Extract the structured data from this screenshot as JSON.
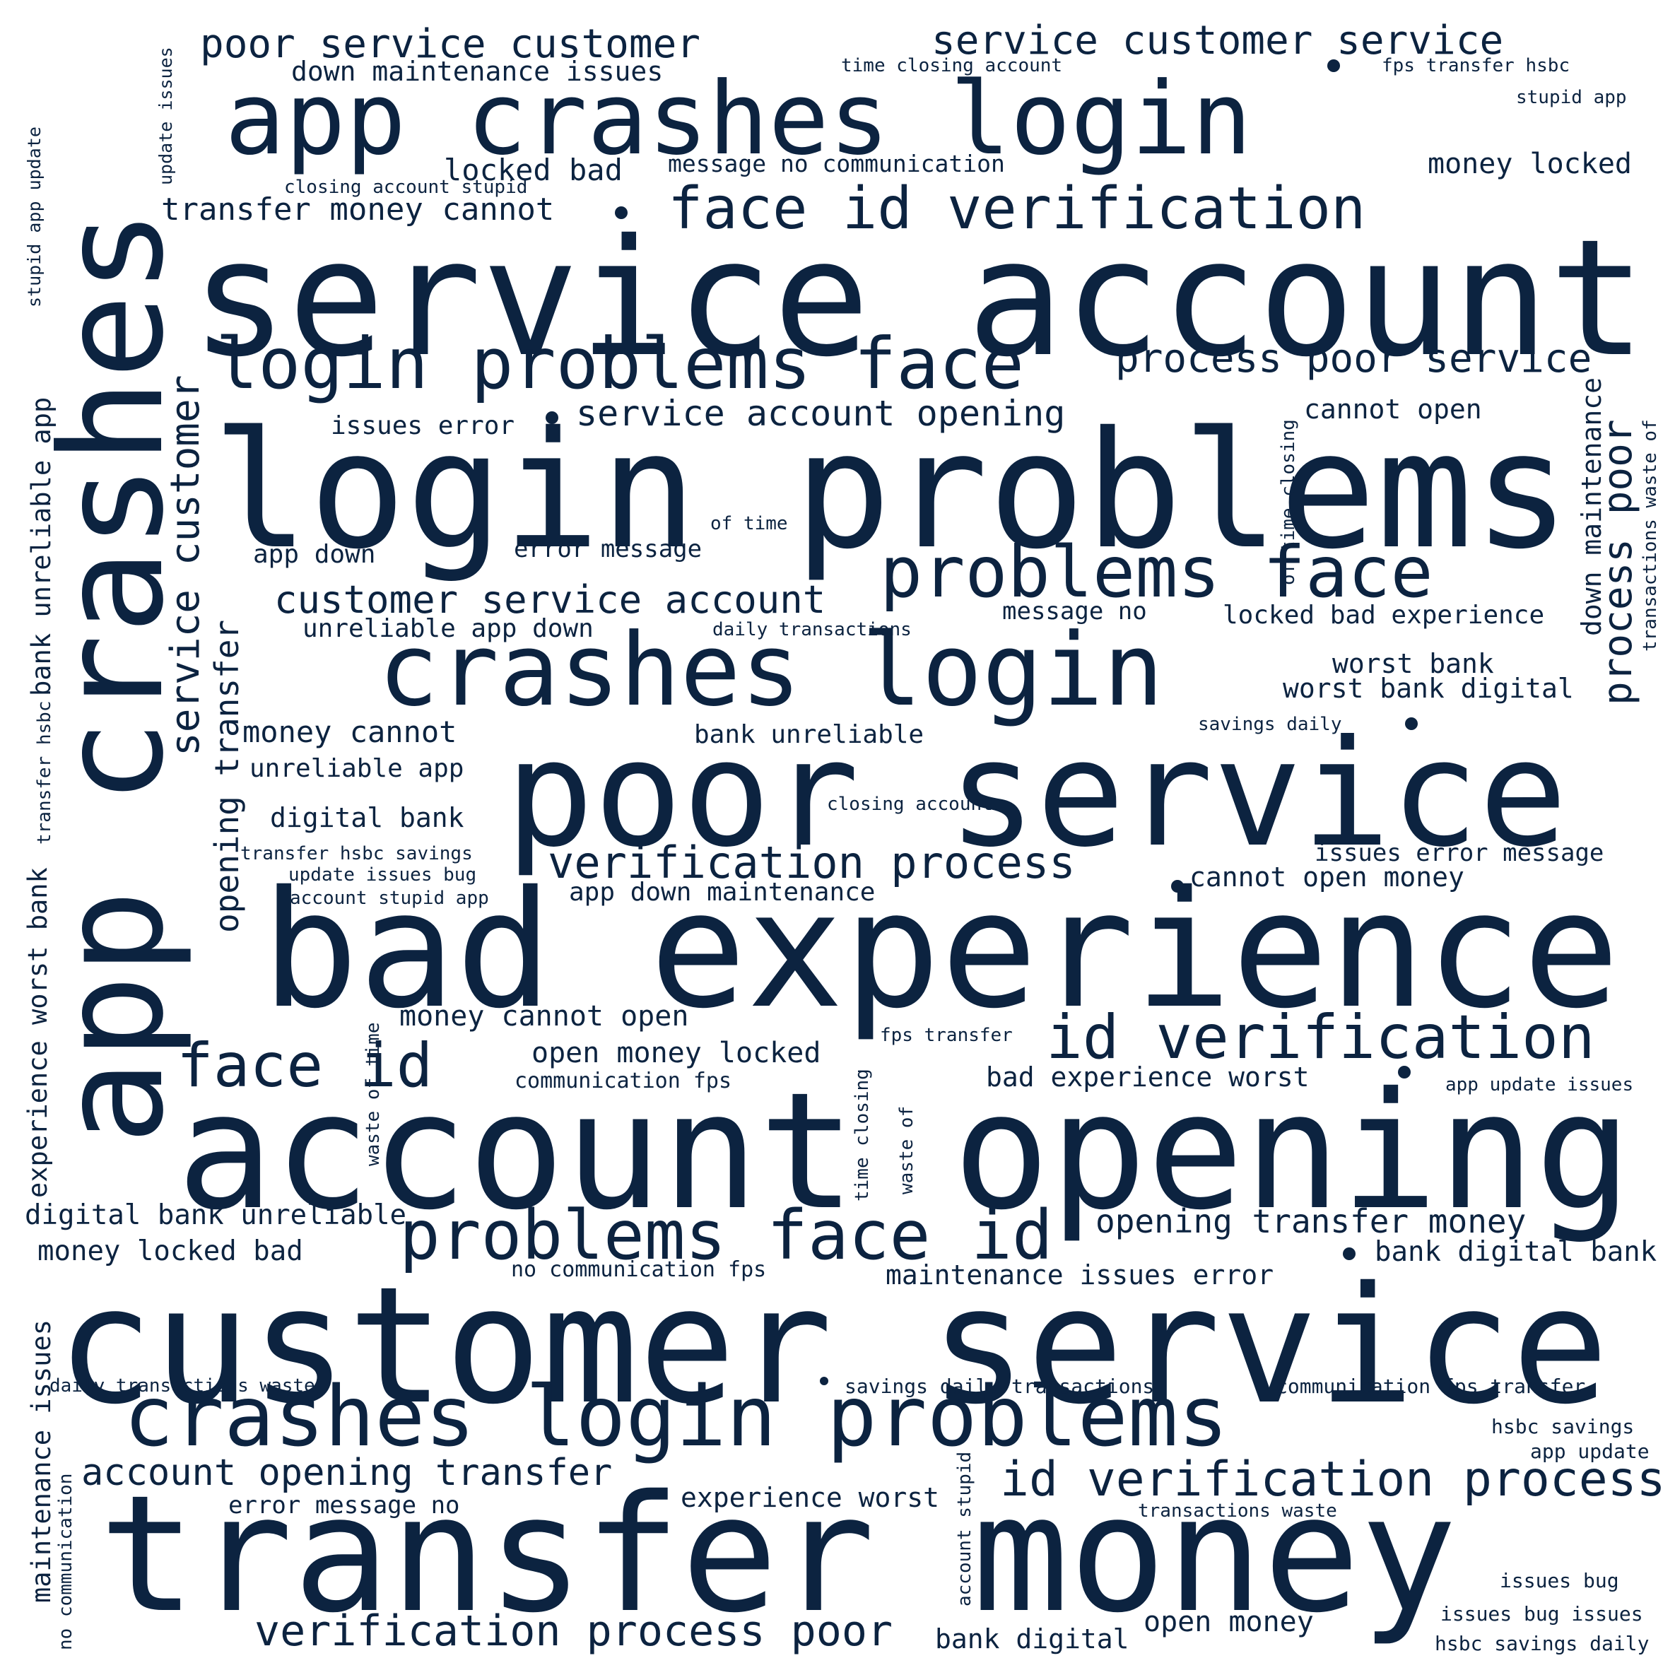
{
  "theme": {
    "background": "#ffffff",
    "word_color": "#0c2340"
  },
  "phrases": [
    "service account",
    "login problems",
    "app crashes",
    "bad experience",
    "account opening",
    "customer service",
    "poor service",
    "transfer money",
    "app crashes login",
    "crashes login",
    "crashes login problems",
    "login problems face",
    "problems face",
    "problems face id",
    "face id verification",
    "id verification",
    "id verification process",
    "verification process",
    "verification process poor",
    "face id",
    "poor service customer",
    "service customer service",
    "process poor service",
    "service account opening",
    "customer service account",
    "account opening transfer",
    "opening transfer money",
    "service customer",
    "opening transfer",
    "process poor",
    "down maintenance",
    "bank unreliable app",
    "experience worst bank",
    "maintenance issues",
    "transfer money cannot",
    "locked bad",
    "money locked",
    "money cannot",
    "money cannot open",
    "open money locked",
    "money locked bad",
    "digital bank unreliable",
    "bank digital bank",
    "maintenance issues error",
    "down maintenance issues",
    "message no communication",
    "cannot open",
    "cannot open money",
    "locked bad experience",
    "worst bank",
    "worst bank digital",
    "bad experience worst",
    "experience worst",
    "open money",
    "bank digital",
    "issues error",
    "issues error message",
    "error message",
    "error message no",
    "app down",
    "app down maintenance",
    "unreliable app down",
    "unreliable app",
    "digital bank",
    "bank unreliable",
    "message no",
    "update issues",
    "stupid app update",
    "stupid app",
    "time closing account",
    "closing account stupid",
    "closing account",
    "fps transfer hsbc",
    "fps transfer",
    "of time",
    "daily transactions",
    "savings daily",
    "communication fps",
    "no communication fps",
    "savings daily transactions",
    "communication fps transfer",
    "daily transactions waste",
    "transactions waste",
    "transactions waste of",
    "of time closing",
    "waste of time",
    "time closing",
    "waste of",
    "account stupid",
    "account stupid app",
    "transfer hsbc",
    "transfer hsbc savings",
    "update issues bug",
    "hsbc savings",
    "hsbc savings daily",
    "app update",
    "app update issues",
    "issues bug",
    "issues bug issues",
    "no communication"
  ]
}
